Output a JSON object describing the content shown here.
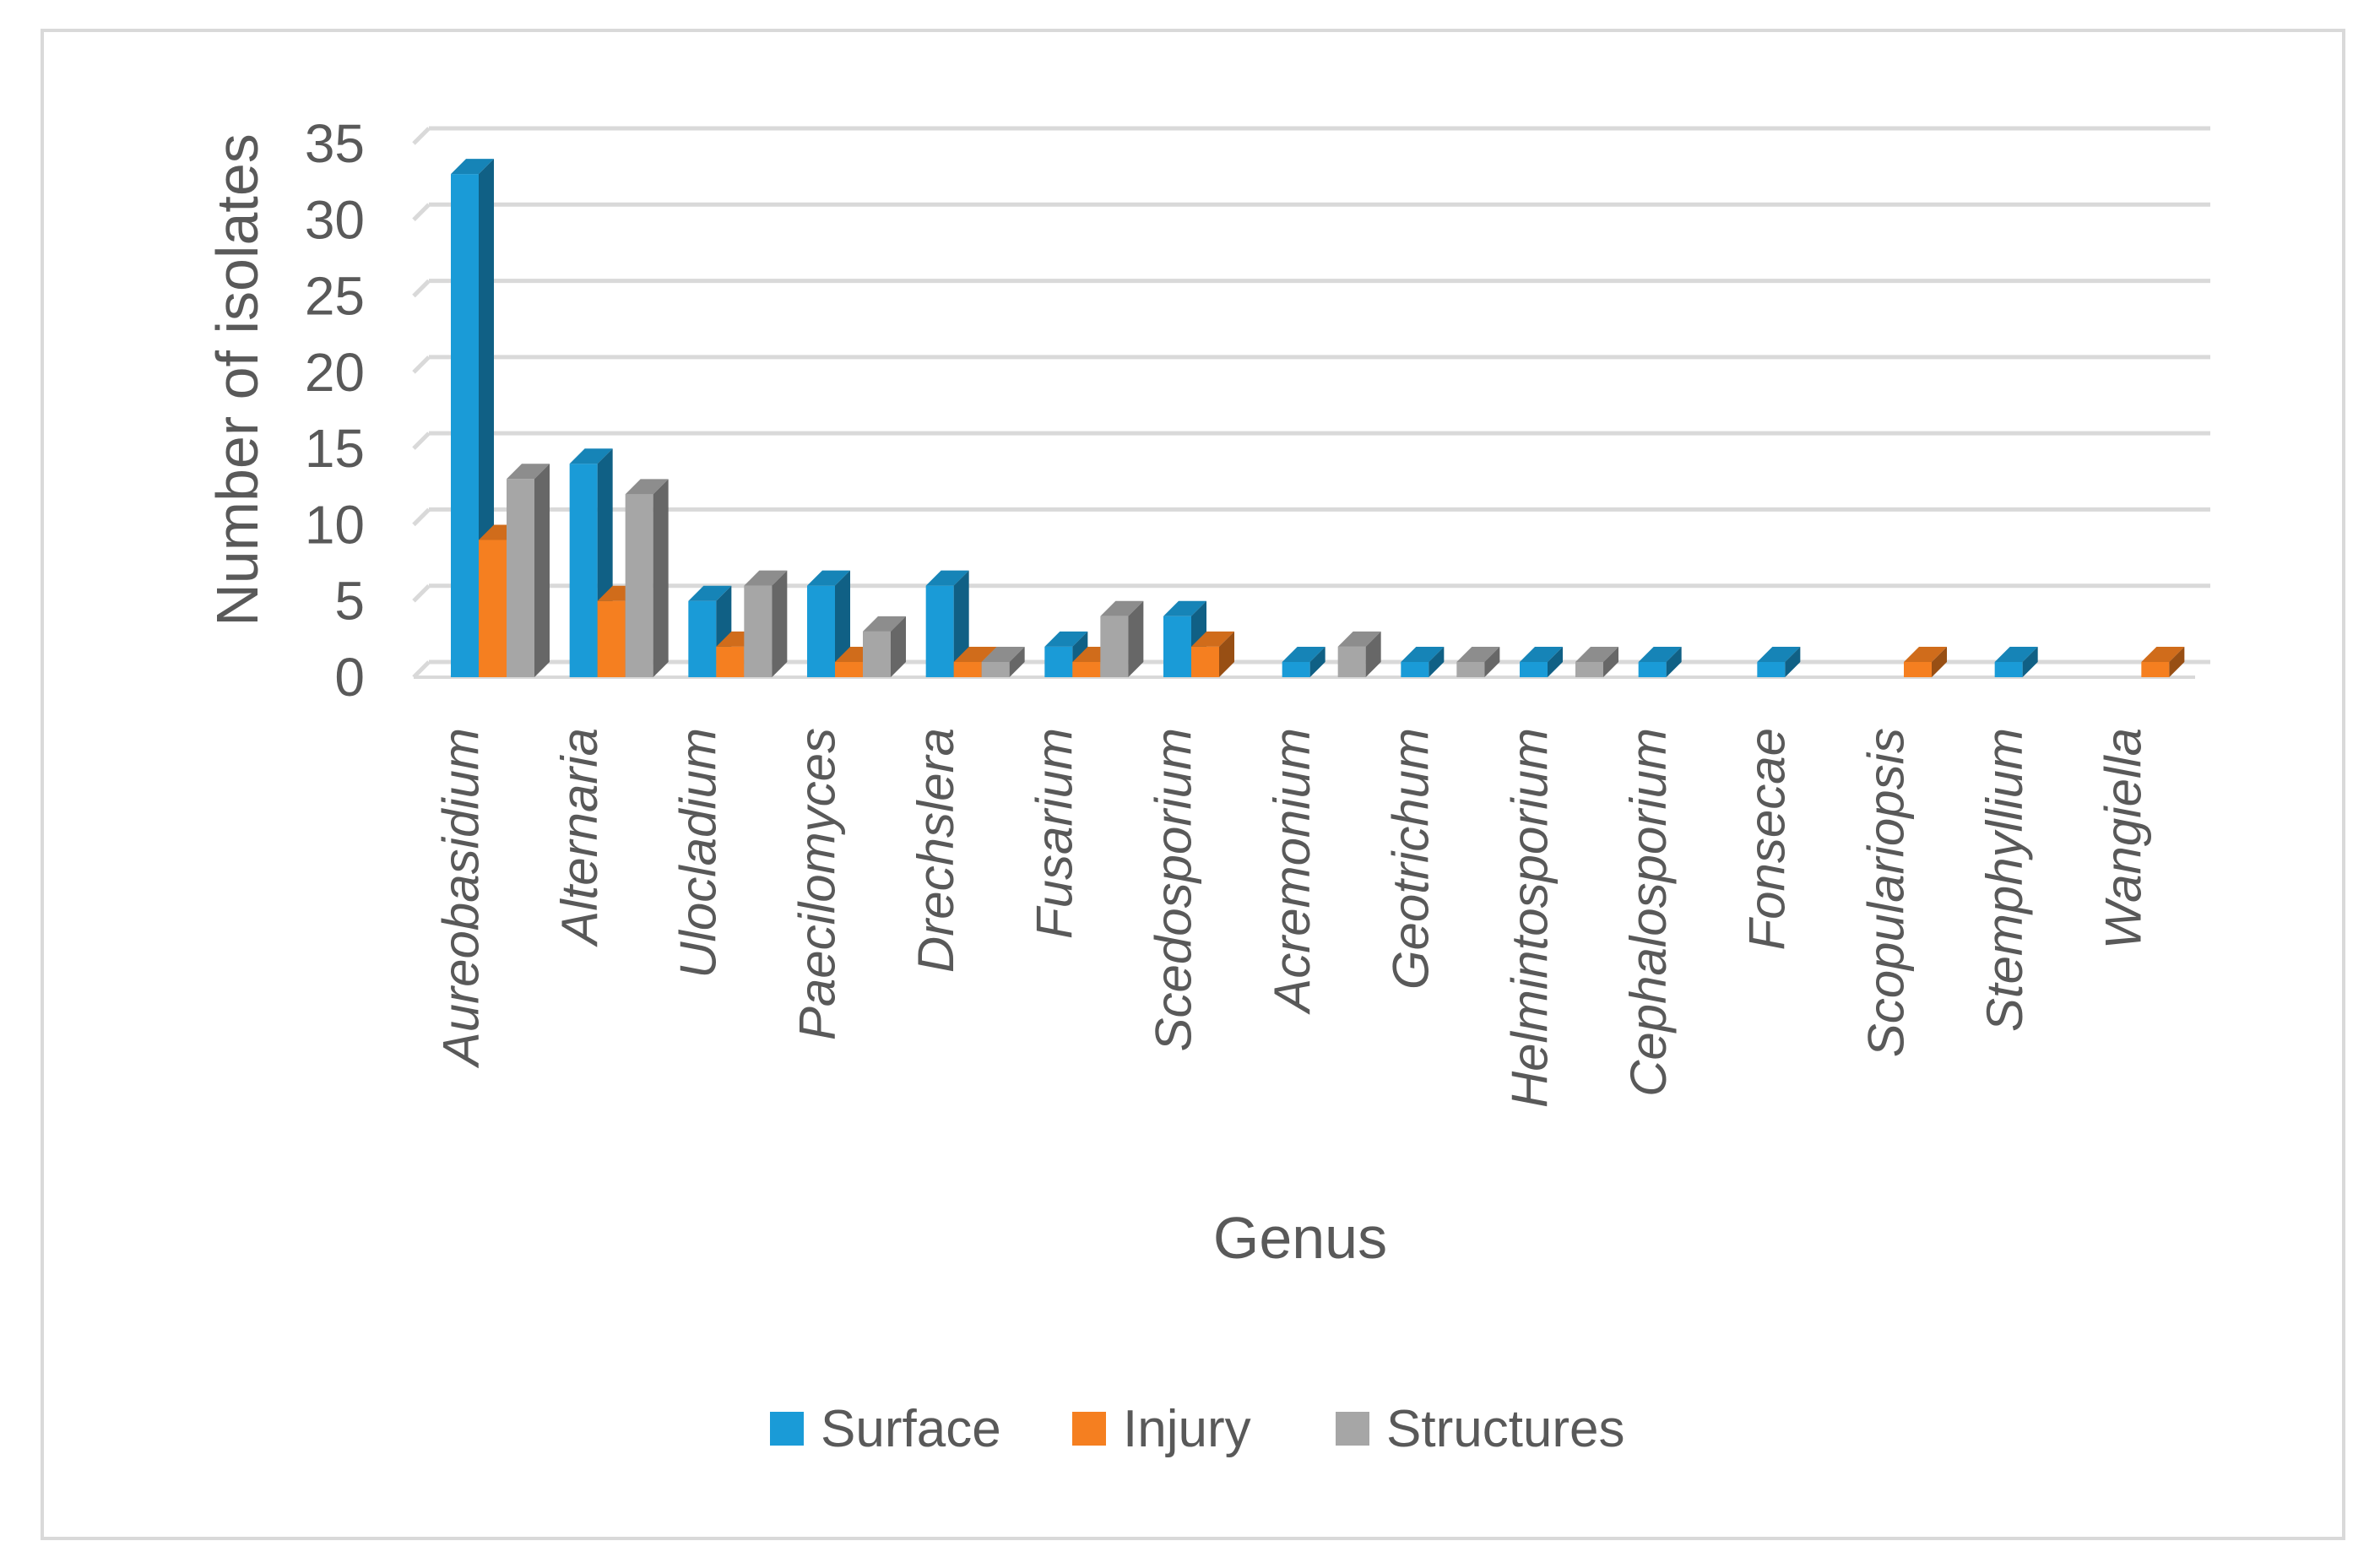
{
  "chart_data": {
    "type": "bar",
    "title": "",
    "xlabel": "Genus",
    "ylabel": "Number of isolates",
    "ylim": [
      0,
      35
    ],
    "yticks": [
      0,
      5,
      10,
      15,
      20,
      25,
      30,
      35
    ],
    "grid": true,
    "legend_position": "bottom",
    "categories": [
      "Aureobasidium",
      "Alternaria",
      "Ulocladium",
      "Paecilomyces",
      "Drechslera",
      "Fusarium",
      "Scedosporium",
      "Acremonium",
      "Geotrichum",
      "Helmintosporium",
      "Cephalosporium",
      "Fonsecae",
      "Scopulariopsis",
      "Stemphyllium",
      "Wangiella"
    ],
    "series": [
      {
        "name": "Surface",
        "color": "#1a9bd7",
        "values": [
          33,
          14,
          5,
          6,
          6,
          2,
          4,
          1,
          1,
          1,
          1,
          1,
          0,
          1,
          0
        ]
      },
      {
        "name": "Injury",
        "color": "#f57f20",
        "values": [
          9,
          5,
          2,
          1,
          1,
          1,
          2,
          0,
          0,
          0,
          0,
          0,
          1,
          0,
          1
        ]
      },
      {
        "name": "Structures",
        "color": "#a6a6a6",
        "values": [
          13,
          12,
          6,
          3,
          1,
          4,
          0,
          2,
          1,
          1,
          0,
          0,
          0,
          0,
          0
        ]
      }
    ]
  }
}
